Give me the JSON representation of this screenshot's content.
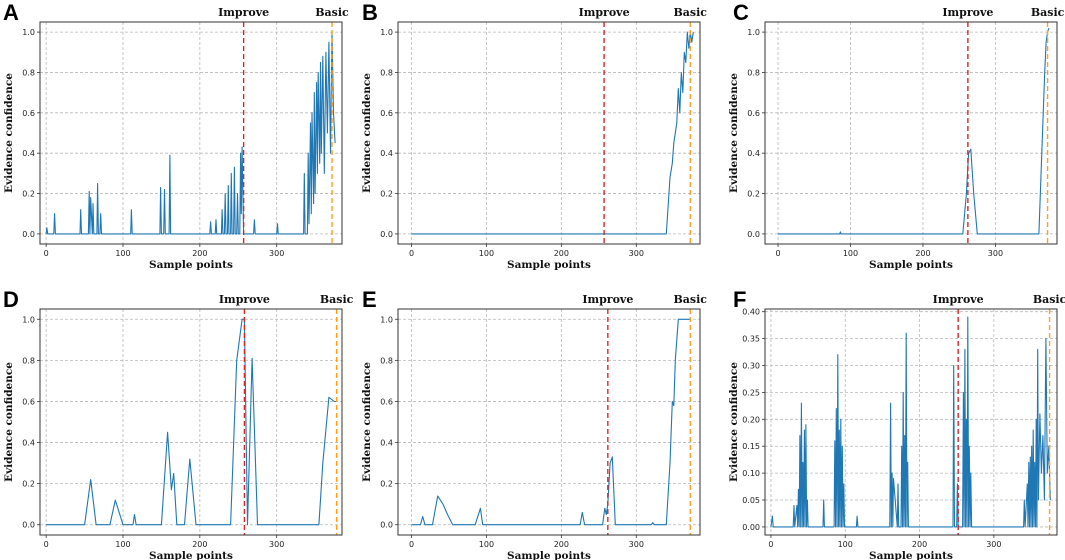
{
  "chart_data": [
    {
      "panel": "A",
      "type": "line",
      "xlabel": "Sample points",
      "ylabel": "Evidence confidence",
      "xlim": [
        -8,
        385
      ],
      "ylim": [
        -0.05,
        1.05
      ],
      "xticks": [
        0,
        100,
        200,
        300
      ],
      "yticks": [
        0.0,
        0.2,
        0.4,
        0.6,
        0.8,
        1.0
      ],
      "ytick_labels": [
        "0.0",
        "0.2",
        "0.4",
        "0.6",
        "0.8",
        "1.0"
      ],
      "markers": [
        {
          "label": "Improve",
          "x": 257,
          "color": "#d62728"
        },
        {
          "label": "Basic",
          "x": 372,
          "color": "#ff9f1c"
        }
      ],
      "series": [
        {
          "name": "evidence",
          "x": [
            0,
            1,
            2,
            3,
            10,
            11,
            12,
            13,
            44,
            45,
            46,
            55,
            56,
            57,
            58,
            60,
            61,
            62,
            66,
            67,
            68,
            70,
            71,
            72,
            110,
            111,
            112,
            148,
            149,
            150,
            153,
            154,
            155,
            160,
            161,
            162,
            163,
            213,
            214,
            215,
            220,
            221,
            222,
            228,
            229,
            230,
            232,
            233,
            234,
            236,
            237,
            238,
            240,
            241,
            242,
            244,
            245,
            246,
            248,
            249,
            250,
            252,
            253,
            254,
            255,
            256,
            257,
            258,
            270,
            271,
            272,
            300,
            301,
            302,
            335,
            336,
            337,
            340,
            341,
            342,
            344,
            345,
            346,
            348,
            349,
            350,
            352,
            353,
            354,
            356,
            357,
            358,
            360,
            362,
            364,
            366,
            368,
            370,
            372,
            374,
            376
          ],
          "values": [
            0,
            0.03,
            0,
            0,
            0,
            0.1,
            0,
            0,
            0,
            0.12,
            0,
            0,
            0.21,
            0,
            0.18,
            0,
            0.15,
            0,
            0,
            0.25,
            0,
            0,
            0.1,
            0,
            0,
            0.12,
            0,
            0,
            0.23,
            0,
            0,
            0.22,
            0,
            0,
            0.39,
            0,
            0,
            0,
            0.06,
            0,
            0,
            0.07,
            0,
            0,
            0.12,
            0,
            0,
            0.2,
            0,
            0,
            0.24,
            0,
            0,
            0.3,
            0,
            0,
            0.33,
            0,
            0,
            0.2,
            0,
            0,
            0.4,
            0.1,
            0.43,
            0.2,
            0,
            0,
            0,
            0.07,
            0,
            0,
            0.05,
            0,
            0,
            0.3,
            0,
            0,
            0.4,
            0.05,
            0.55,
            0.1,
            0.6,
            0.15,
            0.7,
            0.2,
            0.75,
            0.3,
            0.8,
            0.35,
            0.85,
            0.4,
            0.88,
            0.3,
            0.9,
            0.5,
            0.95,
            0.4,
            1.0,
            0.6,
            0.45
          ]
        }
      ]
    },
    {
      "panel": "B",
      "type": "line",
      "xlabel": "Sample points",
      "ylabel": "Evidence confidence",
      "xlim": [
        -18,
        385
      ],
      "ylim": [
        -0.05,
        1.05
      ],
      "xticks": [
        0,
        100,
        200,
        300
      ],
      "yticks": [
        0.0,
        0.2,
        0.4,
        0.6,
        0.8,
        1.0
      ],
      "ytick_labels": [
        "0.0",
        "0.2",
        "0.4",
        "0.6",
        "0.8",
        "1.0"
      ],
      "markers": [
        {
          "label": "Improve",
          "x": 257,
          "color": "#d62728"
        },
        {
          "label": "Basic",
          "x": 372,
          "color": "#ff9f1c"
        }
      ],
      "series": [
        {
          "name": "evidence",
          "x": [
            0,
            340,
            345,
            348,
            350,
            352,
            354,
            356,
            358,
            360,
            362,
            364,
            366,
            368,
            370,
            372,
            374,
            376
          ],
          "values": [
            0,
            0,
            0.28,
            0.35,
            0.45,
            0.5,
            0.55,
            0.72,
            0.6,
            0.8,
            0.7,
            0.9,
            0.85,
            1.0,
            0.92,
            1.0,
            0.95,
            1.0
          ]
        }
      ]
    },
    {
      "panel": "C",
      "type": "line",
      "xlabel": "Sample points",
      "ylabel": "Evidence confidence",
      "xlim": [
        -18,
        385
      ],
      "ylim": [
        -0.05,
        1.05
      ],
      "xticks": [
        0,
        100,
        200,
        300
      ],
      "yticks": [
        0.0,
        0.2,
        0.4,
        0.6,
        0.8,
        1.0
      ],
      "ytick_labels": [
        "0.0",
        "0.2",
        "0.4",
        "0.6",
        "0.8",
        "1.0"
      ],
      "markers": [
        {
          "label": "Improve",
          "x": 262,
          "color": "#d62728"
        },
        {
          "label": "Basic",
          "x": 372,
          "color": "#ff9f1c"
        }
      ],
      "series": [
        {
          "name": "evidence",
          "x": [
            0,
            85,
            86,
            87,
            255,
            260,
            263,
            266,
            270,
            275,
            360,
            365,
            368,
            370,
            372,
            374
          ],
          "values": [
            0,
            0,
            0.01,
            0,
            0,
            0.2,
            0.4,
            0.42,
            0.2,
            0,
            0,
            0.5,
            0.8,
            0.95,
            1.0,
            1.02
          ]
        }
      ]
    },
    {
      "panel": "D",
      "type": "line",
      "xlabel": "Sample points",
      "ylabel": "Evidence confidence",
      "xlim": [
        -8,
        385
      ],
      "ylim": [
        -0.05,
        1.05
      ],
      "xticks": [
        0,
        100,
        200,
        300
      ],
      "yticks": [
        0.0,
        0.2,
        0.4,
        0.6,
        0.8,
        1.0
      ],
      "ytick_labels": [
        "0.0",
        "0.2",
        "0.4",
        "0.6",
        "0.8",
        "1.0"
      ],
      "markers": [
        {
          "label": "Improve",
          "x": 258,
          "color": "#d62728"
        },
        {
          "label": "Basic",
          "x": 378,
          "color": "#ff9f1c"
        }
      ],
      "series": [
        {
          "name": "evidence",
          "x": [
            0,
            50,
            58,
            65,
            83,
            90,
            100,
            103,
            113,
            115,
            117,
            150,
            158,
            163,
            166,
            170,
            180,
            187,
            195,
            240,
            248,
            255,
            258,
            262,
            268,
            275,
            355,
            360,
            368,
            375,
            378
          ],
          "values": [
            0,
            0,
            0.22,
            0,
            0,
            0.12,
            0,
            0,
            0,
            0.05,
            0,
            0,
            0.45,
            0.17,
            0.25,
            0,
            0,
            0.32,
            0,
            0,
            0.8,
            1.0,
            1.0,
            0,
            0.81,
            0,
            0,
            0.3,
            0.62,
            0.6,
            0.6
          ]
        }
      ]
    },
    {
      "panel": "E",
      "type": "line",
      "xlabel": "Sample points",
      "ylabel": "Evidence confidence",
      "xlim": [
        -18,
        385
      ],
      "ylim": [
        -0.05,
        1.05
      ],
      "xticks": [
        0,
        100,
        200,
        300
      ],
      "yticks": [
        0.0,
        0.2,
        0.4,
        0.6,
        0.8,
        1.0
      ],
      "ytick_labels": [
        "0.0",
        "0.2",
        "0.4",
        "0.6",
        "0.8",
        "1.0"
      ],
      "markers": [
        {
          "label": "Improve",
          "x": 262,
          "color": "#d62728"
        },
        {
          "label": "Basic",
          "x": 372,
          "color": "#ff9f1c"
        }
      ],
      "series": [
        {
          "name": "evidence",
          "x": [
            0,
            12,
            15,
            18,
            28,
            35,
            42,
            48,
            55,
            85,
            92,
            95,
            100,
            225,
            228,
            231,
            255,
            258,
            260,
            262,
            265,
            268,
            272,
            278,
            320,
            322,
            324,
            340,
            345,
            348,
            350,
            352,
            356,
            358,
            372
          ],
          "values": [
            0,
            0,
            0.04,
            0,
            0,
            0.14,
            0.1,
            0.05,
            0,
            0,
            0.08,
            0,
            0,
            0,
            0.06,
            0,
            0,
            0.08,
            0.05,
            0.1,
            0.3,
            0.33,
            0,
            0,
            0,
            0.01,
            0,
            0,
            0.3,
            0.6,
            0.58,
            0.8,
            1.0,
            1.0,
            1.0
          ]
        }
      ]
    },
    {
      "panel": "F",
      "type": "line",
      "xlabel": "Sample points",
      "ylabel": "Evidence confidence",
      "xlim": [
        -8,
        385
      ],
      "ylim": [
        -0.015,
        0.405
      ],
      "xticks": [
        0,
        100,
        200,
        300
      ],
      "yticks": [
        0.0,
        0.05,
        0.1,
        0.15,
        0.2,
        0.25,
        0.3,
        0.35,
        0.4
      ],
      "ytick_labels": [
        "0.00",
        "0.05",
        "0.10",
        "0.15",
        "0.20",
        "0.25",
        "0.30",
        "0.35",
        "0.40"
      ],
      "markers": [
        {
          "label": "Improve",
          "x": 252,
          "color": "#d62728"
        },
        {
          "label": "Basic",
          "x": 375,
          "color": "#ff9f1c"
        }
      ],
      "series": [
        {
          "name": "evidence",
          "x": [
            0,
            2,
            3,
            4,
            30,
            31,
            32,
            35,
            36,
            37,
            38,
            39,
            40,
            41,
            42,
            43,
            44,
            45,
            46,
            47,
            48,
            49,
            50,
            70,
            71,
            72,
            85,
            86,
            87,
            88,
            89,
            90,
            91,
            92,
            93,
            94,
            95,
            96,
            97,
            98,
            99,
            100,
            115,
            116,
            117,
            160,
            161,
            162,
            163,
            164,
            165,
            170,
            171,
            172,
            175,
            176,
            177,
            178,
            179,
            180,
            181,
            182,
            183,
            184,
            185,
            245,
            246,
            247,
            250,
            251,
            252,
            258,
            259,
            260,
            261,
            262,
            263,
            264,
            265,
            266,
            267,
            268,
            269,
            270,
            340,
            341,
            342,
            345,
            346,
            347,
            348,
            349,
            350,
            351,
            352,
            353,
            354,
            355,
            356,
            357,
            358,
            359,
            360,
            362,
            364,
            366,
            368,
            370,
            372,
            374,
            376
          ],
          "values": [
            0,
            0.02,
            0,
            0,
            0,
            0.04,
            0,
            0.04,
            0,
            0.07,
            0,
            0.17,
            0,
            0.23,
            0,
            0.12,
            0,
            0.18,
            0,
            0.19,
            0,
            0.05,
            0,
            0,
            0.05,
            0,
            0,
            0.16,
            0,
            0.22,
            0,
            0.32,
            0,
            0.18,
            0,
            0.2,
            0,
            0.15,
            0,
            0.08,
            0,
            0,
            0,
            0.02,
            0,
            0,
            0.23,
            0,
            0.1,
            0,
            0.09,
            0,
            0.08,
            0,
            0,
            0.15,
            0,
            0.25,
            0,
            0.17,
            0,
            0.36,
            0,
            0.12,
            0,
            0,
            0.3,
            0,
            0,
            0.08,
            0,
            0,
            0.25,
            0,
            0.33,
            0,
            0.2,
            0,
            0.39,
            0,
            0.15,
            0,
            0.1,
            0,
            0,
            0.05,
            0,
            0.08,
            0,
            0.12,
            0,
            0.13,
            0,
            0.15,
            0,
            0.18,
            0,
            0.12,
            0,
            0.2,
            0,
            0.33,
            0.05,
            0.21,
            0.1,
            0.17,
            0.05,
            0.35,
            0.1,
            0.15,
            0.05
          ]
        }
      ]
    }
  ]
}
